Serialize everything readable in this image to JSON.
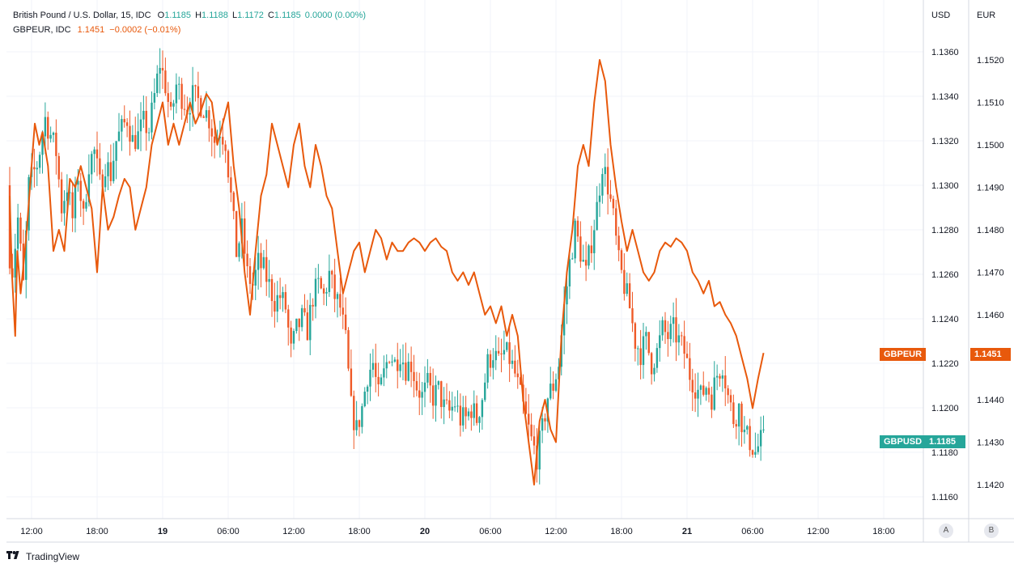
{
  "legend": {
    "main_title": "British Pound / U.S. Dollar, 15, IDC",
    "o_label": "O",
    "o_value": "1.1185",
    "h_label": "H",
    "h_value": "1.1188",
    "l_label": "L",
    "l_value": "1.1172",
    "c_label": "C",
    "c_value": "1.1185",
    "change": "0.0000 (0.00%)",
    "comp_title": "GBPEUR, IDC",
    "comp_value": "1.1451",
    "comp_change": "−0.0002 (−0.01%)"
  },
  "axes": {
    "usd_header": "USD",
    "eur_header": "EUR",
    "scale_a": "A",
    "scale_b": "B"
  },
  "badges": {
    "gbpeur_label": "GBPEUR",
    "gbpeur_value": "1.1451",
    "gbpusd_label": "GBPUSD",
    "gbpusd_value": "1.1185"
  },
  "branding": {
    "logo_icon": "tradingview-logo-icon",
    "name": "TradingView"
  },
  "colors": {
    "up": "#26a69a",
    "down": "#ef5a28",
    "compare_line": "#e8590c",
    "grid": "#f0f3fa"
  },
  "chart_data": {
    "type": "line",
    "usd_ticks": [
      "1.1360",
      "1.1340",
      "1.1320",
      "1.1300",
      "1.1280",
      "1.1260",
      "1.1240",
      "1.1220",
      "1.1200",
      "1.1180",
      "1.1160"
    ],
    "eur_ticks": [
      "1.1520",
      "1.1510",
      "1.1500",
      "1.1490",
      "1.1480",
      "1.1470",
      "1.1460",
      "1.1440",
      "1.1430",
      "1.1420"
    ],
    "x_ticks": [
      {
        "label": "12:00",
        "t": 0
      },
      {
        "label": "18:00",
        "t": 6
      },
      {
        "label": "19",
        "t": 12
      },
      {
        "label": "06:00",
        "t": 18
      },
      {
        "label": "12:00",
        "t": 24
      },
      {
        "label": "18:00",
        "t": 30
      },
      {
        "label": "20",
        "t": 36
      },
      {
        "label": "06:00",
        "t": 42
      },
      {
        "label": "12:00",
        "t": 48
      },
      {
        "label": "18:00",
        "t": 54
      },
      {
        "label": "21",
        "t": 60
      },
      {
        "label": "06:00",
        "t": 66
      },
      {
        "label": "12:00",
        "t": 72
      },
      {
        "label": "18:00",
        "t": 78
      }
    ],
    "series": [
      {
        "name": "GBPUSD",
        "style": "candlestick",
        "anchors": [
          [
            -2,
            1.13
          ],
          [
            -1.8,
            1.127
          ],
          [
            -1.5,
            1.1262
          ],
          [
            -1,
            1.1285
          ],
          [
            -0.5,
            1.1255
          ],
          [
            0,
            1.13
          ],
          [
            0.8,
            1.131
          ],
          [
            1.5,
            1.133
          ],
          [
            2.5,
            1.1315
          ],
          [
            3,
            1.129
          ],
          [
            3.5,
            1.13
          ],
          [
            4,
            1.1285
          ],
          [
            4.5,
            1.1305
          ],
          [
            5,
            1.1285
          ],
          [
            5.5,
            1.131
          ],
          [
            6,
            1.1315
          ],
          [
            6.5,
            1.13
          ],
          [
            7,
            1.131
          ],
          [
            7.5,
            1.1305
          ],
          [
            8,
            1.132
          ],
          [
            8.5,
            1.1325
          ],
          [
            9,
            1.133
          ],
          [
            9.5,
            1.132
          ],
          [
            10,
            1.1322
          ],
          [
            10.5,
            1.1328
          ],
          [
            11,
            1.1325
          ],
          [
            11.5,
            1.134
          ],
          [
            12,
            1.1355
          ],
          [
            12.5,
            1.1345
          ],
          [
            13,
            1.133
          ],
          [
            13.5,
            1.1345
          ],
          [
            14,
            1.134
          ],
          [
            14.5,
            1.1335
          ],
          [
            15,
            1.134
          ],
          [
            15.5,
            1.1338
          ],
          [
            16,
            1.1335
          ],
          [
            16.5,
            1.133
          ],
          [
            17,
            1.132
          ],
          [
            17.5,
            1.1325
          ],
          [
            18,
            1.132
          ],
          [
            18.5,
            1.1295
          ],
          [
            19,
            1.127
          ],
          [
            19.5,
            1.128
          ],
          [
            20,
            1.126
          ],
          [
            20.5,
            1.1255
          ],
          [
            21,
            1.1265
          ],
          [
            21.5,
            1.1262
          ],
          [
            22,
            1.1255
          ],
          [
            22.5,
            1.1248
          ],
          [
            23,
            1.125
          ],
          [
            23.5,
            1.1245
          ],
          [
            24,
            1.1225
          ],
          [
            24.5,
            1.1235
          ],
          [
            25,
            1.124
          ],
          [
            25.5,
            1.1235
          ],
          [
            26,
            1.125
          ],
          [
            26.5,
            1.1255
          ],
          [
            27,
            1.125
          ],
          [
            27.5,
            1.126
          ],
          [
            28,
            1.125
          ],
          [
            28.5,
            1.1245
          ],
          [
            29,
            1.123
          ],
          [
            29.5,
            1.12
          ],
          [
            30,
            1.119
          ],
          [
            30.5,
            1.12
          ],
          [
            31,
            1.1215
          ],
          [
            31.5,
            1.122
          ],
          [
            32,
            1.1205
          ],
          [
            32.5,
            1.1215
          ],
          [
            33,
            1.1225
          ],
          [
            33.5,
            1.122
          ],
          [
            34,
            1.1225
          ],
          [
            34.5,
            1.1218
          ],
          [
            35,
            1.122
          ],
          [
            35.5,
            1.121
          ],
          [
            36,
            1.1205
          ],
          [
            36.5,
            1.121
          ],
          [
            37,
            1.1205
          ],
          [
            37.5,
            1.1208
          ],
          [
            38,
            1.12
          ],
          [
            38.5,
            1.1198
          ],
          [
            39,
            1.1202
          ],
          [
            39.5,
            1.1195
          ],
          [
            40,
            1.1195
          ],
          [
            40.5,
            1.12
          ],
          [
            41,
            1.1195
          ],
          [
            41.5,
            1.1205
          ],
          [
            42,
            1.122
          ],
          [
            42.5,
            1.1225
          ],
          [
            43,
            1.122
          ],
          [
            43.5,
            1.1225
          ],
          [
            44,
            1.1222
          ],
          [
            44.5,
            1.1215
          ],
          [
            45,
            1.1205
          ],
          [
            45.5,
            1.1195
          ],
          [
            46,
            1.1185
          ],
          [
            46.5,
            1.1178
          ],
          [
            47,
            1.119
          ],
          [
            47.5,
            1.1205
          ],
          [
            48,
            1.121
          ],
          [
            48.5,
            1.122
          ],
          [
            49,
            1.1245
          ],
          [
            49.5,
            1.1265
          ],
          [
            50,
            1.128
          ],
          [
            50.5,
            1.127
          ],
          [
            51,
            1.126
          ],
          [
            51.5,
            1.1275
          ],
          [
            52,
            1.129
          ],
          [
            52.5,
            1.131
          ],
          [
            53,
            1.13
          ],
          [
            53.5,
            1.1285
          ],
          [
            54,
            1.1265
          ],
          [
            54.5,
            1.1255
          ],
          [
            55,
            1.1245
          ],
          [
            55.5,
            1.123
          ],
          [
            56,
            1.1225
          ],
          [
            56.5,
            1.123
          ],
          [
            57,
            1.122
          ],
          [
            57.5,
            1.1225
          ],
          [
            58,
            1.1235
          ],
          [
            58.5,
            1.1232
          ],
          [
            59,
            1.1235
          ],
          [
            59.5,
            1.123
          ],
          [
            60,
            1.1225
          ],
          [
            60.5,
            1.1215
          ],
          [
            61,
            1.121
          ],
          [
            61.5,
            1.1205
          ],
          [
            62,
            1.121
          ],
          [
            62.5,
            1.1205
          ],
          [
            63,
            1.1215
          ],
          [
            63.5,
            1.122
          ],
          [
            64,
            1.1205
          ],
          [
            64.5,
            1.1195
          ],
          [
            65,
            1.12
          ],
          [
            65.5,
            1.1188
          ],
          [
            66,
            1.1185
          ],
          [
            66.5,
            1.118
          ],
          [
            67,
            1.1185
          ]
        ]
      },
      {
        "name": "GBPEUR",
        "style": "line",
        "points": [
          [
            -2,
            1.1488
          ],
          [
            -1.8,
            1.147
          ],
          [
            -1.5,
            1.1455
          ],
          [
            -1.3,
            1.1475
          ],
          [
            -1,
            1.1465
          ],
          [
            -0.5,
            1.1478
          ],
          [
            0,
            1.1495
          ],
          [
            0.3,
            1.1505
          ],
          [
            0.7,
            1.15
          ],
          [
            1,
            1.1503
          ],
          [
            1.5,
            1.1495
          ],
          [
            2,
            1.1475
          ],
          [
            2.5,
            1.148
          ],
          [
            3,
            1.1475
          ],
          [
            3.5,
            1.1492
          ],
          [
            4,
            1.149
          ],
          [
            4.5,
            1.1495
          ],
          [
            5,
            1.149
          ],
          [
            5.5,
            1.1485
          ],
          [
            6,
            1.147
          ],
          [
            6.5,
            1.149
          ],
          [
            7,
            1.148
          ],
          [
            7.5,
            1.1483
          ],
          [
            8,
            1.1488
          ],
          [
            8.5,
            1.1492
          ],
          [
            9,
            1.149
          ],
          [
            9.5,
            1.148
          ],
          [
            10,
            1.1485
          ],
          [
            10.5,
            1.149
          ],
          [
            11,
            1.15
          ],
          [
            11.5,
            1.1505
          ],
          [
            12,
            1.151
          ],
          [
            12.5,
            1.15
          ],
          [
            13,
            1.1505
          ],
          [
            13.5,
            1.15
          ],
          [
            14,
            1.1505
          ],
          [
            14.5,
            1.151
          ],
          [
            15,
            1.1505
          ],
          [
            15.5,
            1.1508
          ],
          [
            16,
            1.1512
          ],
          [
            16.5,
            1.151
          ],
          [
            17,
            1.15
          ],
          [
            17.5,
            1.1505
          ],
          [
            18,
            1.151
          ],
          [
            18.5,
            1.1495
          ],
          [
            19,
            1.1485
          ],
          [
            19.5,
            1.147
          ],
          [
            20,
            1.146
          ],
          [
            20.5,
            1.1475
          ],
          [
            21,
            1.1488
          ],
          [
            21.5,
            1.1493
          ],
          [
            22,
            1.1505
          ],
          [
            22.5,
            1.15
          ],
          [
            23,
            1.1495
          ],
          [
            23.5,
            1.149
          ],
          [
            24,
            1.15
          ],
          [
            24.5,
            1.1505
          ],
          [
            25,
            1.1495
          ],
          [
            25.5,
            1.149
          ],
          [
            26,
            1.15
          ],
          [
            26.5,
            1.1495
          ],
          [
            27,
            1.1488
          ],
          [
            27.5,
            1.1485
          ],
          [
            28,
            1.1475
          ],
          [
            28.5,
            1.1465
          ],
          [
            29,
            1.147
          ],
          [
            29.5,
            1.1475
          ],
          [
            30,
            1.1477
          ],
          [
            30.5,
            1.147
          ],
          [
            31,
            1.1475
          ],
          [
            31.5,
            1.148
          ],
          [
            32,
            1.1478
          ],
          [
            32.5,
            1.1473
          ],
          [
            33,
            1.1477
          ],
          [
            33.5,
            1.1475
          ],
          [
            34,
            1.1475
          ],
          [
            34.5,
            1.1477
          ],
          [
            35,
            1.1478
          ],
          [
            35.5,
            1.1477
          ],
          [
            36,
            1.1475
          ],
          [
            36.5,
            1.1477
          ],
          [
            37,
            1.1478
          ],
          [
            37.5,
            1.1476
          ],
          [
            38,
            1.1475
          ],
          [
            38.5,
            1.147
          ],
          [
            39,
            1.1468
          ],
          [
            39.5,
            1.147
          ],
          [
            40,
            1.1467
          ],
          [
            40.5,
            1.147
          ],
          [
            41,
            1.1465
          ],
          [
            41.5,
            1.146
          ],
          [
            42,
            1.1462
          ],
          [
            42.5,
            1.1458
          ],
          [
            43,
            1.1462
          ],
          [
            43.5,
            1.1455
          ],
          [
            44,
            1.146
          ],
          [
            44.5,
            1.1455
          ],
          [
            45,
            1.144
          ],
          [
            45.5,
            1.143
          ],
          [
            46,
            1.142
          ],
          [
            46.5,
            1.1435
          ],
          [
            47,
            1.144
          ],
          [
            47.5,
            1.1433
          ],
          [
            48,
            1.143
          ],
          [
            48.5,
            1.1455
          ],
          [
            49,
            1.147
          ],
          [
            49.5,
            1.148
          ],
          [
            50,
            1.1495
          ],
          [
            50.5,
            1.15
          ],
          [
            51,
            1.1495
          ],
          [
            51.5,
            1.151
          ],
          [
            52,
            1.152
          ],
          [
            52.5,
            1.1515
          ],
          [
            53,
            1.15
          ],
          [
            53.5,
            1.149
          ],
          [
            54,
            1.1482
          ],
          [
            54.5,
            1.1475
          ],
          [
            55,
            1.148
          ],
          [
            55.5,
            1.1475
          ],
          [
            56,
            1.147
          ],
          [
            56.5,
            1.1468
          ],
          [
            57,
            1.147
          ],
          [
            57.5,
            1.1475
          ],
          [
            58,
            1.1477
          ],
          [
            58.5,
            1.1476
          ],
          [
            59,
            1.1478
          ],
          [
            59.5,
            1.1477
          ],
          [
            60,
            1.1475
          ],
          [
            60.5,
            1.147
          ],
          [
            61,
            1.1468
          ],
          [
            61.5,
            1.1465
          ],
          [
            62,
            1.1468
          ],
          [
            62.5,
            1.1462
          ],
          [
            63,
            1.1463
          ],
          [
            63.5,
            1.146
          ],
          [
            64,
            1.1458
          ],
          [
            64.5,
            1.1455
          ],
          [
            65,
            1.145
          ],
          [
            65.5,
            1.1445
          ],
          [
            66,
            1.1438
          ],
          [
            66.5,
            1.1445
          ],
          [
            67,
            1.1451
          ]
        ]
      }
    ]
  }
}
